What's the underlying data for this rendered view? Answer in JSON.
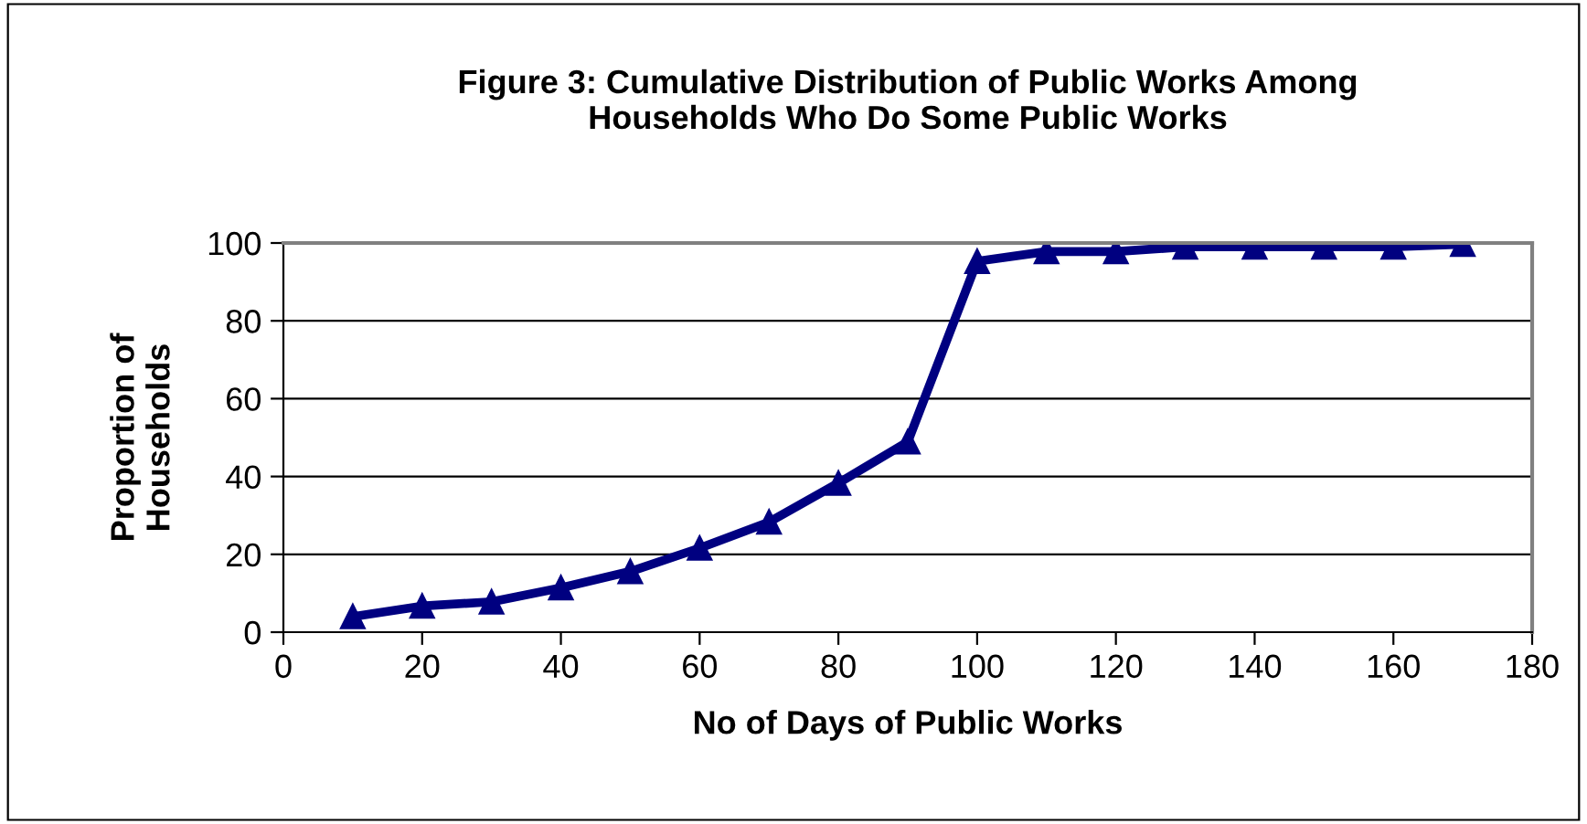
{
  "chart_data": {
    "type": "line",
    "title": "Figure 3: Cumulative Distribution of Public Works Among\nHouseholds Who Do Some Public Works",
    "xlabel": "No of Days of Public Works",
    "ylabel": "Proportion of\nHouseholds",
    "x": [
      10,
      20,
      30,
      40,
      50,
      60,
      70,
      80,
      90,
      100,
      110,
      120,
      130,
      140,
      150,
      160,
      170
    ],
    "series": [
      {
        "color": "#000080",
        "values": [
          4,
          6.7,
          7.8,
          11.4,
          15.6,
          21.6,
          28.3,
          38.3,
          48.9,
          95.3,
          97.8,
          97.8,
          99,
          99,
          99,
          99,
          99.7
        ]
      }
    ],
    "xlim": [
      0,
      180
    ],
    "xticks": [
      0,
      20,
      40,
      60,
      80,
      100,
      120,
      140,
      160,
      180
    ],
    "ylim": [
      0,
      100
    ],
    "yticks": [
      0,
      20,
      40,
      60,
      80,
      100
    ],
    "grid": "y",
    "marker": "triangle",
    "line_style": "solid"
  }
}
